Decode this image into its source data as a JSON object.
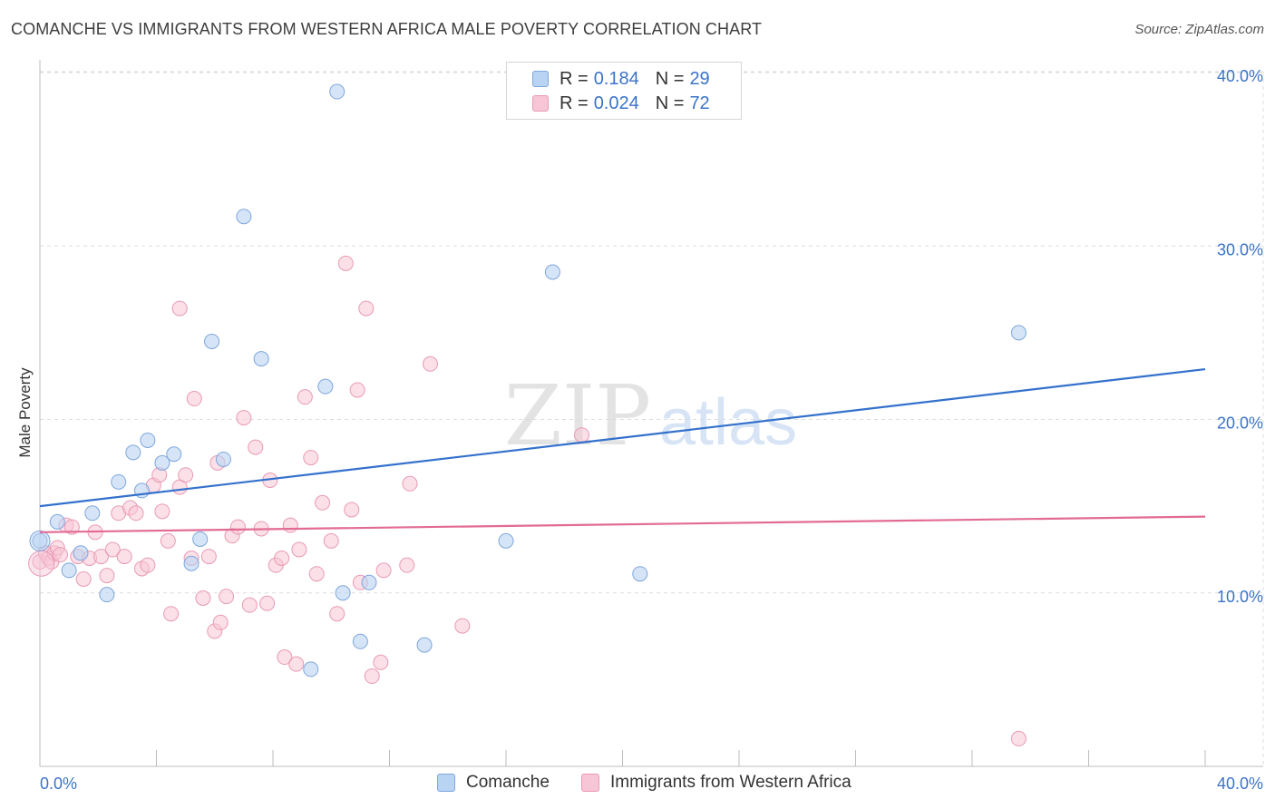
{
  "header": {
    "title": "COMANCHE VS IMMIGRANTS FROM WESTERN AFRICA MALE POVERTY CORRELATION CHART",
    "source": "Source: ZipAtlas.com"
  },
  "watermark": {
    "zip": "ZIP",
    "atlas": "atlas"
  },
  "legend": {
    "rows": [
      {
        "r_label": "R =",
        "r_value": "0.184",
        "n_label": "N =",
        "n_value": "29"
      },
      {
        "r_label": "R =",
        "r_value": "0.024",
        "n_label": "N =",
        "n_value": "72"
      }
    ]
  },
  "bottom_legend": {
    "series1": "Comanche",
    "series2": "Immigrants from Western Africa"
  },
  "colors": {
    "comanche_fill": "#b9d3f2",
    "comanche_stroke": "#7ea6dc",
    "comanche_line": "#3471cc",
    "waf_fill": "#f7c6d6",
    "waf_stroke": "#e99ab4",
    "waf_line": "#e26b94",
    "tick_label": "#3b73c8",
    "grid": "#dddddd"
  },
  "chart_data": {
    "type": "scatter",
    "title": "COMANCHE VS IMMIGRANTS FROM WESTERN AFRICA MALE POVERTY CORRELATION CHART",
    "xlabel": "",
    "ylabel": "Male Poverty",
    "xlim": [
      0,
      40
    ],
    "ylim": [
      0,
      40
    ],
    "x_ticks": [
      "0.0%",
      "40.0%"
    ],
    "y_ticks": [
      {
        "value": 10,
        "label": "10.0%"
      },
      {
        "value": 20,
        "label": "20.0%"
      },
      {
        "value": 30,
        "label": "30.0%"
      },
      {
        "value": 40,
        "label": "40.0%"
      }
    ],
    "grid": true,
    "legend_position": "top-center",
    "series": [
      {
        "name": "Comanche",
        "color": "#7ea6dc",
        "r": 0.184,
        "n": 29,
        "trend": {
          "x": [
            0,
            40
          ],
          "y": [
            15.0,
            22.9
          ]
        },
        "points": [
          [
            0.0,
            13.0
          ],
          [
            0.6,
            14.1
          ],
          [
            1.0,
            11.3
          ],
          [
            1.4,
            12.3
          ],
          [
            1.8,
            14.6
          ],
          [
            2.3,
            9.9
          ],
          [
            2.7,
            16.4
          ],
          [
            3.2,
            18.1
          ],
          [
            3.5,
            15.9
          ],
          [
            3.7,
            18.8
          ],
          [
            4.2,
            17.5
          ],
          [
            4.6,
            18.0
          ],
          [
            5.2,
            11.7
          ],
          [
            5.5,
            13.1
          ],
          [
            5.9,
            24.5
          ],
          [
            6.3,
            17.7
          ],
          [
            7.0,
            31.7
          ],
          [
            7.6,
            23.5
          ],
          [
            9.3,
            5.6
          ],
          [
            9.8,
            21.9
          ],
          [
            10.2,
            38.9
          ],
          [
            10.4,
            10.0
          ],
          [
            11.0,
            7.2
          ],
          [
            11.3,
            10.6
          ],
          [
            13.2,
            7.0
          ],
          [
            16.0,
            13.0
          ],
          [
            17.6,
            28.5
          ],
          [
            20.6,
            11.1
          ],
          [
            33.6,
            25.0
          ]
        ]
      },
      {
        "name": "Immigrants from Western Africa",
        "color": "#e99ab4",
        "r": 0.024,
        "n": 72,
        "trend": {
          "x": [
            0,
            40
          ],
          "y": [
            13.5,
            14.4
          ]
        },
        "points": [
          [
            0.0,
            11.8
          ],
          [
            0.2,
            12.3
          ],
          [
            0.3,
            12.0
          ],
          [
            0.4,
            11.8
          ],
          [
            0.5,
            12.3
          ],
          [
            0.6,
            12.6
          ],
          [
            0.7,
            12.2
          ],
          [
            0.9,
            13.9
          ],
          [
            1.1,
            13.8
          ],
          [
            1.3,
            12.1
          ],
          [
            1.5,
            10.8
          ],
          [
            1.7,
            12.0
          ],
          [
            1.9,
            13.5
          ],
          [
            2.1,
            12.1
          ],
          [
            2.3,
            11.0
          ],
          [
            2.5,
            12.5
          ],
          [
            2.7,
            14.6
          ],
          [
            2.9,
            12.1
          ],
          [
            3.1,
            14.9
          ],
          [
            3.3,
            14.6
          ],
          [
            3.5,
            11.4
          ],
          [
            3.7,
            11.6
          ],
          [
            3.9,
            16.2
          ],
          [
            4.1,
            16.8
          ],
          [
            4.2,
            14.7
          ],
          [
            4.4,
            13.0
          ],
          [
            4.5,
            8.8
          ],
          [
            4.8,
            16.1
          ],
          [
            4.8,
            26.4
          ],
          [
            5.0,
            16.8
          ],
          [
            5.2,
            12.0
          ],
          [
            5.3,
            21.2
          ],
          [
            5.6,
            9.7
          ],
          [
            5.8,
            12.1
          ],
          [
            6.0,
            7.8
          ],
          [
            6.1,
            17.5
          ],
          [
            6.2,
            8.3
          ],
          [
            6.4,
            9.8
          ],
          [
            6.6,
            13.3
          ],
          [
            6.8,
            13.8
          ],
          [
            7.0,
            20.1
          ],
          [
            7.2,
            9.3
          ],
          [
            7.4,
            18.4
          ],
          [
            7.6,
            13.7
          ],
          [
            7.8,
            9.4
          ],
          [
            7.9,
            16.5
          ],
          [
            8.1,
            11.6
          ],
          [
            8.3,
            12.0
          ],
          [
            8.4,
            6.3
          ],
          [
            8.6,
            13.9
          ],
          [
            8.8,
            5.9
          ],
          [
            8.9,
            12.5
          ],
          [
            9.1,
            21.3
          ],
          [
            9.3,
            17.8
          ],
          [
            9.5,
            11.1
          ],
          [
            9.7,
            15.2
          ],
          [
            10.0,
            13.0
          ],
          [
            10.2,
            8.8
          ],
          [
            10.5,
            29.0
          ],
          [
            10.7,
            14.8
          ],
          [
            10.9,
            21.7
          ],
          [
            11.0,
            10.6
          ],
          [
            11.2,
            26.4
          ],
          [
            11.4,
            5.2
          ],
          [
            11.7,
            6.0
          ],
          [
            11.8,
            11.3
          ],
          [
            12.6,
            11.6
          ],
          [
            12.7,
            16.3
          ],
          [
            13.4,
            23.2
          ],
          [
            14.5,
            8.1
          ],
          [
            18.6,
            19.1
          ],
          [
            33.6,
            1.6
          ]
        ]
      }
    ]
  }
}
